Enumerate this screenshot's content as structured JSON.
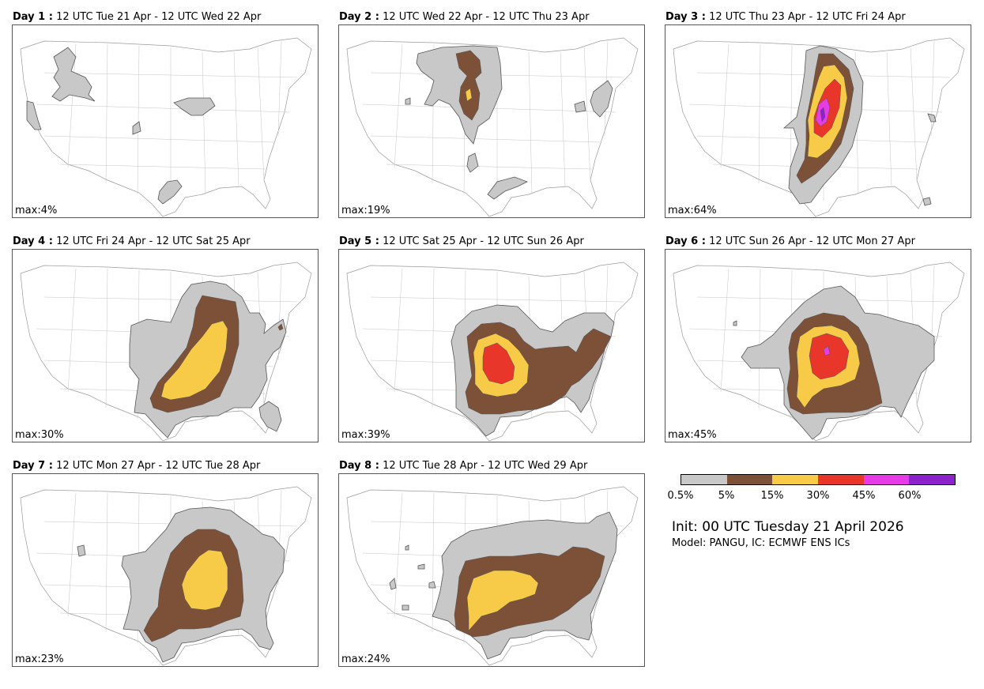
{
  "panels": [
    {
      "day_label": "Day 1 :",
      "period": "12 UTC Tue 21 Apr - 12 UTC Wed 22 Apr",
      "max": "max:4%"
    },
    {
      "day_label": "Day 2 :",
      "period": "12 UTC Wed 22 Apr - 12 UTC Thu 23 Apr",
      "max": "max:19%"
    },
    {
      "day_label": "Day 3 :",
      "period": "12 UTC Thu 23 Apr - 12 UTC Fri 24 Apr",
      "max": "max:64%"
    },
    {
      "day_label": "Day 4 :",
      "period": "12 UTC Fri 24 Apr - 12 UTC Sat 25 Apr",
      "max": "max:30%"
    },
    {
      "day_label": "Day 5 :",
      "period": "12 UTC Sat 25 Apr - 12 UTC Sun 26 Apr",
      "max": "max:39%"
    },
    {
      "day_label": "Day 6 :",
      "period": "12 UTC Sun 26 Apr - 12 UTC Mon 27 Apr",
      "max": "max:45%"
    },
    {
      "day_label": "Day 7 :",
      "period": "12 UTC Mon 27 Apr - 12 UTC Tue 28 Apr",
      "max": "max:23%"
    },
    {
      "day_label": "Day 8 :",
      "period": "12 UTC Tue 28 Apr - 12 UTC Wed 29 Apr",
      "max": "max:24%"
    }
  ],
  "legend": {
    "colors": [
      "#c8c8c8",
      "#7d5138",
      "#f7cb48",
      "#e8362b",
      "#e83be8",
      "#8b22cc"
    ],
    "ticks": [
      "0.5%",
      "5%",
      "15%",
      "30%",
      "45%",
      "60%"
    ]
  },
  "init_text": "Init: 00 UTC Tuesday 21 April 2026",
  "model_text": "Model: PANGU, IC: ECMWF ENS ICs"
}
